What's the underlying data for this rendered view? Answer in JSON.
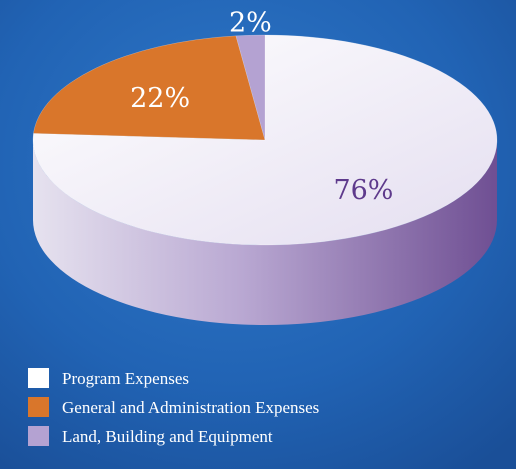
{
  "chart_data": {
    "type": "pie",
    "categories": [
      "Program Expenses",
      "General and Administration Expenses",
      "Land, Building and Equipment"
    ],
    "values": [
      76,
      22,
      2
    ],
    "value_labels": [
      "76%",
      "22%",
      "2%"
    ],
    "colors": [
      "#ffffff",
      "#d9762b",
      "#b4a2d2"
    ],
    "legend": "bottom-left"
  }
}
